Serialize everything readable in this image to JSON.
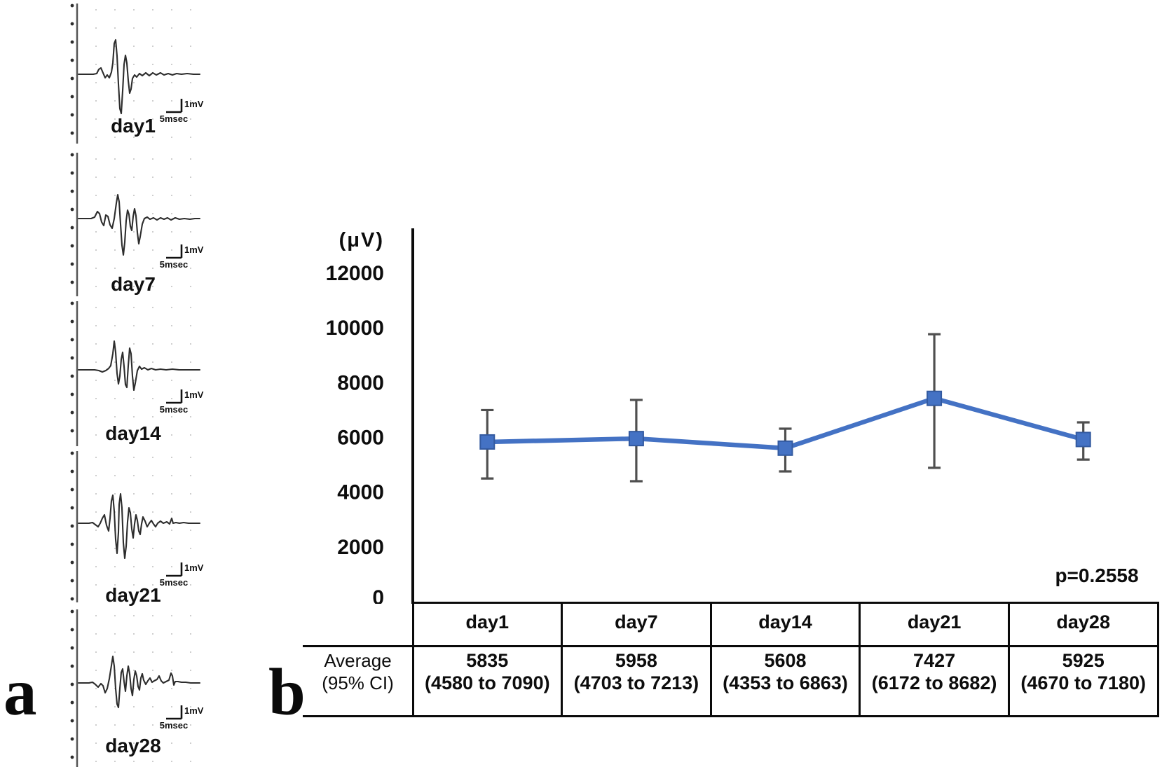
{
  "panel_a": {
    "label": "a",
    "scalebar": {
      "time_label": "5msec",
      "amplitude_label": "1mV"
    },
    "traces": [
      {
        "label": "day1",
        "points": [
          [
            27,
            106
          ],
          [
            48,
            106
          ],
          [
            53,
            105
          ],
          [
            56,
            99
          ],
          [
            59,
            97
          ],
          [
            62,
            104
          ],
          [
            65,
            111
          ],
          [
            68,
            107
          ],
          [
            71,
            111
          ],
          [
            74,
            103
          ],
          [
            76,
            90
          ],
          [
            78,
            62
          ],
          [
            80,
            57
          ],
          [
            82,
            80
          ],
          [
            84,
            120
          ],
          [
            86,
            155
          ],
          [
            88,
            162
          ],
          [
            90,
            130
          ],
          [
            92,
            92
          ],
          [
            94,
            79
          ],
          [
            96,
            90
          ],
          [
            98,
            115
          ],
          [
            100,
            133
          ],
          [
            102,
            127
          ],
          [
            104,
            112
          ],
          [
            107,
            107
          ],
          [
            110,
            110
          ],
          [
            114,
            105
          ],
          [
            118,
            108
          ],
          [
            123,
            104
          ],
          [
            128,
            108
          ],
          [
            133,
            104
          ],
          [
            138,
            107
          ],
          [
            144,
            104
          ],
          [
            149,
            107
          ],
          [
            155,
            105
          ],
          [
            161,
            107
          ],
          [
            167,
            105
          ],
          [
            174,
            106
          ],
          [
            182,
            105
          ],
          [
            191,
            106
          ],
          [
            200,
            106
          ]
        ]
      },
      {
        "label": "day7",
        "points": [
          [
            27,
            102
          ],
          [
            45,
            102
          ],
          [
            50,
            100
          ],
          [
            54,
            92
          ],
          [
            57,
            95
          ],
          [
            60,
            107
          ],
          [
            63,
            112
          ],
          [
            66,
            97
          ],
          [
            69,
            99
          ],
          [
            72,
            111
          ],
          [
            75,
            116
          ],
          [
            78,
            102
          ],
          [
            81,
            80
          ],
          [
            83,
            68
          ],
          [
            85,
            78
          ],
          [
            87,
            110
          ],
          [
            89,
            140
          ],
          [
            91,
            154
          ],
          [
            93,
            136
          ],
          [
            95,
            105
          ],
          [
            97,
            90
          ],
          [
            99,
            96
          ],
          [
            101,
            113
          ],
          [
            103,
            119
          ],
          [
            105,
            99
          ],
          [
            107,
            88
          ],
          [
            109,
            98
          ],
          [
            111,
            122
          ],
          [
            113,
            138
          ],
          [
            115,
            128
          ],
          [
            118,
            110
          ],
          [
            121,
            102
          ],
          [
            125,
            100
          ],
          [
            129,
            103
          ],
          [
            134,
            101
          ],
          [
            139,
            104
          ],
          [
            144,
            101
          ],
          [
            149,
            103
          ],
          [
            154,
            101
          ],
          [
            159,
            104
          ],
          [
            165,
            101
          ],
          [
            171,
            103
          ],
          [
            178,
            102
          ],
          [
            186,
            103
          ],
          [
            193,
            102
          ],
          [
            200,
            102
          ]
        ]
      },
      {
        "label": "day14",
        "points": [
          [
            27,
            103
          ],
          [
            50,
            103
          ],
          [
            56,
            104
          ],
          [
            61,
            106
          ],
          [
            66,
            104
          ],
          [
            70,
            101
          ],
          [
            73,
            97
          ],
          [
            76,
            80
          ],
          [
            78,
            62
          ],
          [
            80,
            78
          ],
          [
            82,
            108
          ],
          [
            84,
            123
          ],
          [
            86,
            112
          ],
          [
            88,
            88
          ],
          [
            90,
            78
          ],
          [
            92,
            98
          ],
          [
            94,
            124
          ],
          [
            96,
            128
          ],
          [
            98,
            97
          ],
          [
            100,
            72
          ],
          [
            102,
            80
          ],
          [
            104,
            112
          ],
          [
            106,
            132
          ],
          [
            108,
            122
          ],
          [
            111,
            104
          ],
          [
            114,
            98
          ],
          [
            117,
            102
          ],
          [
            121,
            100
          ],
          [
            126,
            103
          ],
          [
            131,
            101
          ],
          [
            137,
            103
          ],
          [
            144,
            102
          ],
          [
            152,
            103
          ],
          [
            161,
            102
          ],
          [
            171,
            103
          ],
          [
            182,
            103
          ],
          [
            192,
            103
          ],
          [
            200,
            103
          ]
        ]
      },
      {
        "label": "day21",
        "points": [
          [
            27,
            107
          ],
          [
            42,
            107
          ],
          [
            47,
            106
          ],
          [
            51,
            109
          ],
          [
            55,
            112
          ],
          [
            58,
            107
          ],
          [
            61,
            100
          ],
          [
            64,
            95
          ],
          [
            67,
            110
          ],
          [
            70,
            118
          ],
          [
            72,
            100
          ],
          [
            74,
            75
          ],
          [
            76,
            67
          ],
          [
            78,
            90
          ],
          [
            80,
            130
          ],
          [
            82,
            150
          ],
          [
            84,
            120
          ],
          [
            85,
            80
          ],
          [
            87,
            65
          ],
          [
            89,
            85
          ],
          [
            91,
            135
          ],
          [
            93,
            157
          ],
          [
            95,
            140
          ],
          [
            97,
            105
          ],
          [
            99,
            85
          ],
          [
            101,
            92
          ],
          [
            103,
            115
          ],
          [
            105,
            128
          ],
          [
            107,
            108
          ],
          [
            109,
            95
          ],
          [
            111,
            103
          ],
          [
            113,
            118
          ],
          [
            115,
            123
          ],
          [
            117,
            108
          ],
          [
            119,
            98
          ],
          [
            122,
            104
          ],
          [
            125,
            112
          ],
          [
            128,
            107
          ],
          [
            131,
            103
          ],
          [
            134,
            108
          ],
          [
            137,
            112
          ],
          [
            140,
            107
          ],
          [
            144,
            104
          ],
          [
            148,
            107
          ],
          [
            153,
            105
          ],
          [
            157,
            108
          ],
          [
            160,
            100
          ],
          [
            162,
            107
          ],
          [
            166,
            106
          ],
          [
            171,
            107
          ],
          [
            177,
            106
          ],
          [
            184,
            107
          ],
          [
            192,
            107
          ],
          [
            200,
            107
          ]
        ]
      },
      {
        "label": "day28",
        "points": [
          [
            27,
            110
          ],
          [
            42,
            110
          ],
          [
            47,
            109
          ],
          [
            51,
            112
          ],
          [
            55,
            116
          ],
          [
            59,
            111
          ],
          [
            62,
            114
          ],
          [
            65,
            124
          ],
          [
            68,
            118
          ],
          [
            71,
            104
          ],
          [
            74,
            85
          ],
          [
            76,
            72
          ],
          [
            78,
            86
          ],
          [
            80,
            118
          ],
          [
            82,
            140
          ],
          [
            84,
            145
          ],
          [
            86,
            118
          ],
          [
            88,
            95
          ],
          [
            90,
            90
          ],
          [
            92,
            108
          ],
          [
            94,
            122
          ],
          [
            96,
            100
          ],
          [
            98,
            86
          ],
          [
            100,
            97
          ],
          [
            102,
            118
          ],
          [
            104,
            128
          ],
          [
            106,
            105
          ],
          [
            108,
            93
          ],
          [
            110,
            100
          ],
          [
            112,
            115
          ],
          [
            114,
            120
          ],
          [
            116,
            103
          ],
          [
            118,
            97
          ],
          [
            120,
            106
          ],
          [
            123,
            112
          ],
          [
            126,
            107
          ],
          [
            129,
            103
          ],
          [
            132,
            109
          ],
          [
            135,
            107
          ],
          [
            139,
            105
          ],
          [
            142,
            100
          ],
          [
            145,
            107
          ],
          [
            148,
            110
          ],
          [
            152,
            108
          ],
          [
            156,
            106
          ],
          [
            159,
            96
          ],
          [
            161,
            100
          ],
          [
            163,
            113
          ],
          [
            165,
            108
          ],
          [
            169,
            108
          ],
          [
            174,
            109
          ],
          [
            180,
            109
          ],
          [
            187,
            110
          ],
          [
            194,
            110
          ],
          [
            200,
            110
          ]
        ]
      }
    ]
  },
  "panel_b": {
    "label": "b"
  },
  "chart_data": {
    "type": "line",
    "categories": [
      "day1",
      "day7",
      "day14",
      "day21",
      "day28"
    ],
    "series": [
      {
        "name": "",
        "values": [
          5835,
          5958,
          5608,
          7427,
          5925
        ]
      }
    ],
    "ci_95_low": [
      4580,
      4703,
      4353,
      6172,
      4670
    ],
    "ci_95_high": [
      7090,
      7213,
      6863,
      8682,
      7180
    ],
    "whisker_low": [
      4500,
      4400,
      4760,
      4890,
      5190
    ],
    "whisker_high": [
      7000,
      7370,
      6320,
      9770,
      6550
    ],
    "ylabel": "(μV)",
    "yticks": [
      "12000",
      "10000",
      "8000",
      "6000",
      "4000",
      "2000",
      "0"
    ],
    "ytick_values": [
      12000,
      10000,
      8000,
      6000,
      4000,
      2000,
      0
    ],
    "ylim": [
      0,
      13600
    ],
    "grid": false,
    "legend_position": "none",
    "marker": "square",
    "annotation": "p=0.2558",
    "line_color": "#4472C4",
    "marker_color": "#4472C4",
    "marker_edge_color": "#335aa0",
    "errorbar_color": "#4f4f4f",
    "table": {
      "row_header": [
        "Average",
        "(95% CI)"
      ],
      "rows": [
        {
          "day": "day1",
          "mean": "5835",
          "ci": "(4580 to 7090)"
        },
        {
          "day": "day7",
          "mean": "5958",
          "ci": "(4703 to 7213)"
        },
        {
          "day": "day14",
          "mean": "5608",
          "ci": "(4353 to 6863)"
        },
        {
          "day": "day21",
          "mean": "7427",
          "ci": "(6172 to 8682)"
        },
        {
          "day": "day28",
          "mean": "5925",
          "ci": "(4670 to 7180)"
        }
      ]
    }
  }
}
